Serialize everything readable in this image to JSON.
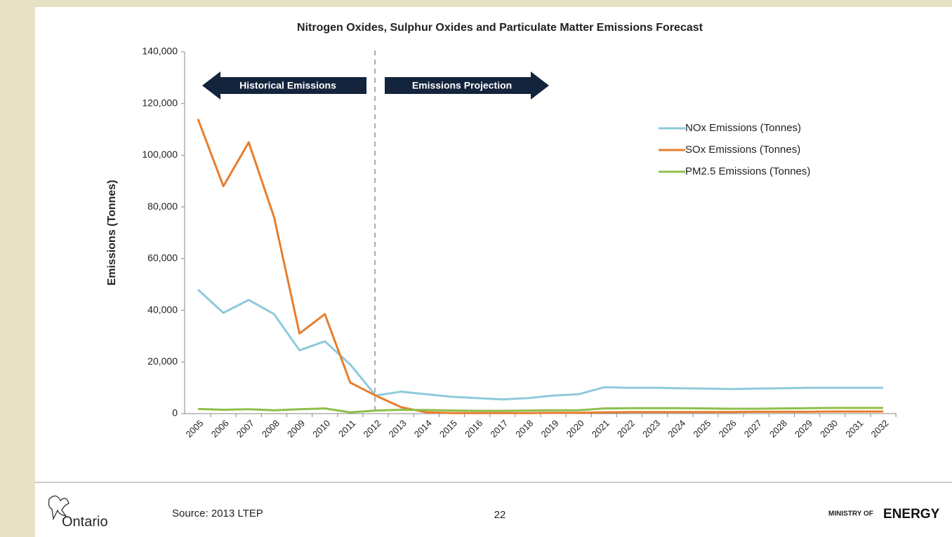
{
  "chart_data": {
    "type": "line",
    "title": "Nitrogen Oxides, Sulphur Oxides and Particulate Matter Emissions Forecast",
    "y_label": "Emissions (Tonnes)",
    "categories": [
      "2005",
      "2006",
      "2007",
      "2008",
      "2009",
      "2010",
      "2011",
      "2012",
      "2013",
      "2014",
      "2015",
      "2016",
      "2017",
      "2018",
      "2019",
      "2020",
      "2021",
      "2022",
      "2023",
      "2024",
      "2025",
      "2026",
      "2027",
      "2028",
      "2029",
      "2030",
      "2031",
      "2032"
    ],
    "series": [
      {
        "name": "NOx Emissions (Tonnes)",
        "color": "#8ecadb",
        "values": [
          48000,
          39000,
          44000,
          38500,
          24500,
          28000,
          19000,
          7000,
          8500,
          7500,
          6500,
          6000,
          5500,
          6000,
          7000,
          7500,
          10200,
          10000,
          10000,
          9800,
          9700,
          9500,
          9700,
          9800,
          10000,
          10000,
          10000,
          10000
        ]
      },
      {
        "name": "SOx Emissions (Tonnes)",
        "color": "#e67e2e",
        "values": [
          114000,
          88000,
          105000,
          76000,
          31000,
          38500,
          12000,
          7000,
          2500,
          500,
          200,
          200,
          200,
          200,
          300,
          300,
          500,
          600,
          600,
          600,
          600,
          600,
          700,
          700,
          700,
          800,
          800,
          800
        ]
      },
      {
        "name": "PM2.5 Emissions (Tonnes)",
        "color": "#8dbf4a",
        "values": [
          1800,
          1500,
          1700,
          1300,
          1700,
          2000,
          500,
          1200,
          1500,
          1400,
          1200,
          1100,
          1100,
          1200,
          1300,
          1300,
          2000,
          2100,
          2100,
          2100,
          2000,
          1900,
          1900,
          2000,
          2100,
          2200,
          2200,
          2200
        ]
      }
    ],
    "ylim": [
      0,
      140000
    ],
    "yticks": [
      0,
      {
        "value": 20000,
        "label": "20,000"
      },
      {
        "value": 40000,
        "label": "40,000"
      },
      {
        "value": 60000,
        "label": "60,000"
      },
      {
        "value": 80000,
        "label": "80,000"
      },
      {
        "value": 100000,
        "label": "100,000"
      },
      {
        "value": 120000,
        "label": "120,000"
      },
      {
        "value": 140000,
        "label": "140,000"
      }
    ],
    "annotations": [
      "Historical Emissions",
      "Emissions Projection"
    ],
    "legend": "upper right"
  },
  "footer": {
    "logo": "Ontario",
    "source": "Source: 2013 LTEP",
    "page": "22",
    "ministry_of": "MINISTRY OF",
    "ministry": "ENERGY"
  }
}
